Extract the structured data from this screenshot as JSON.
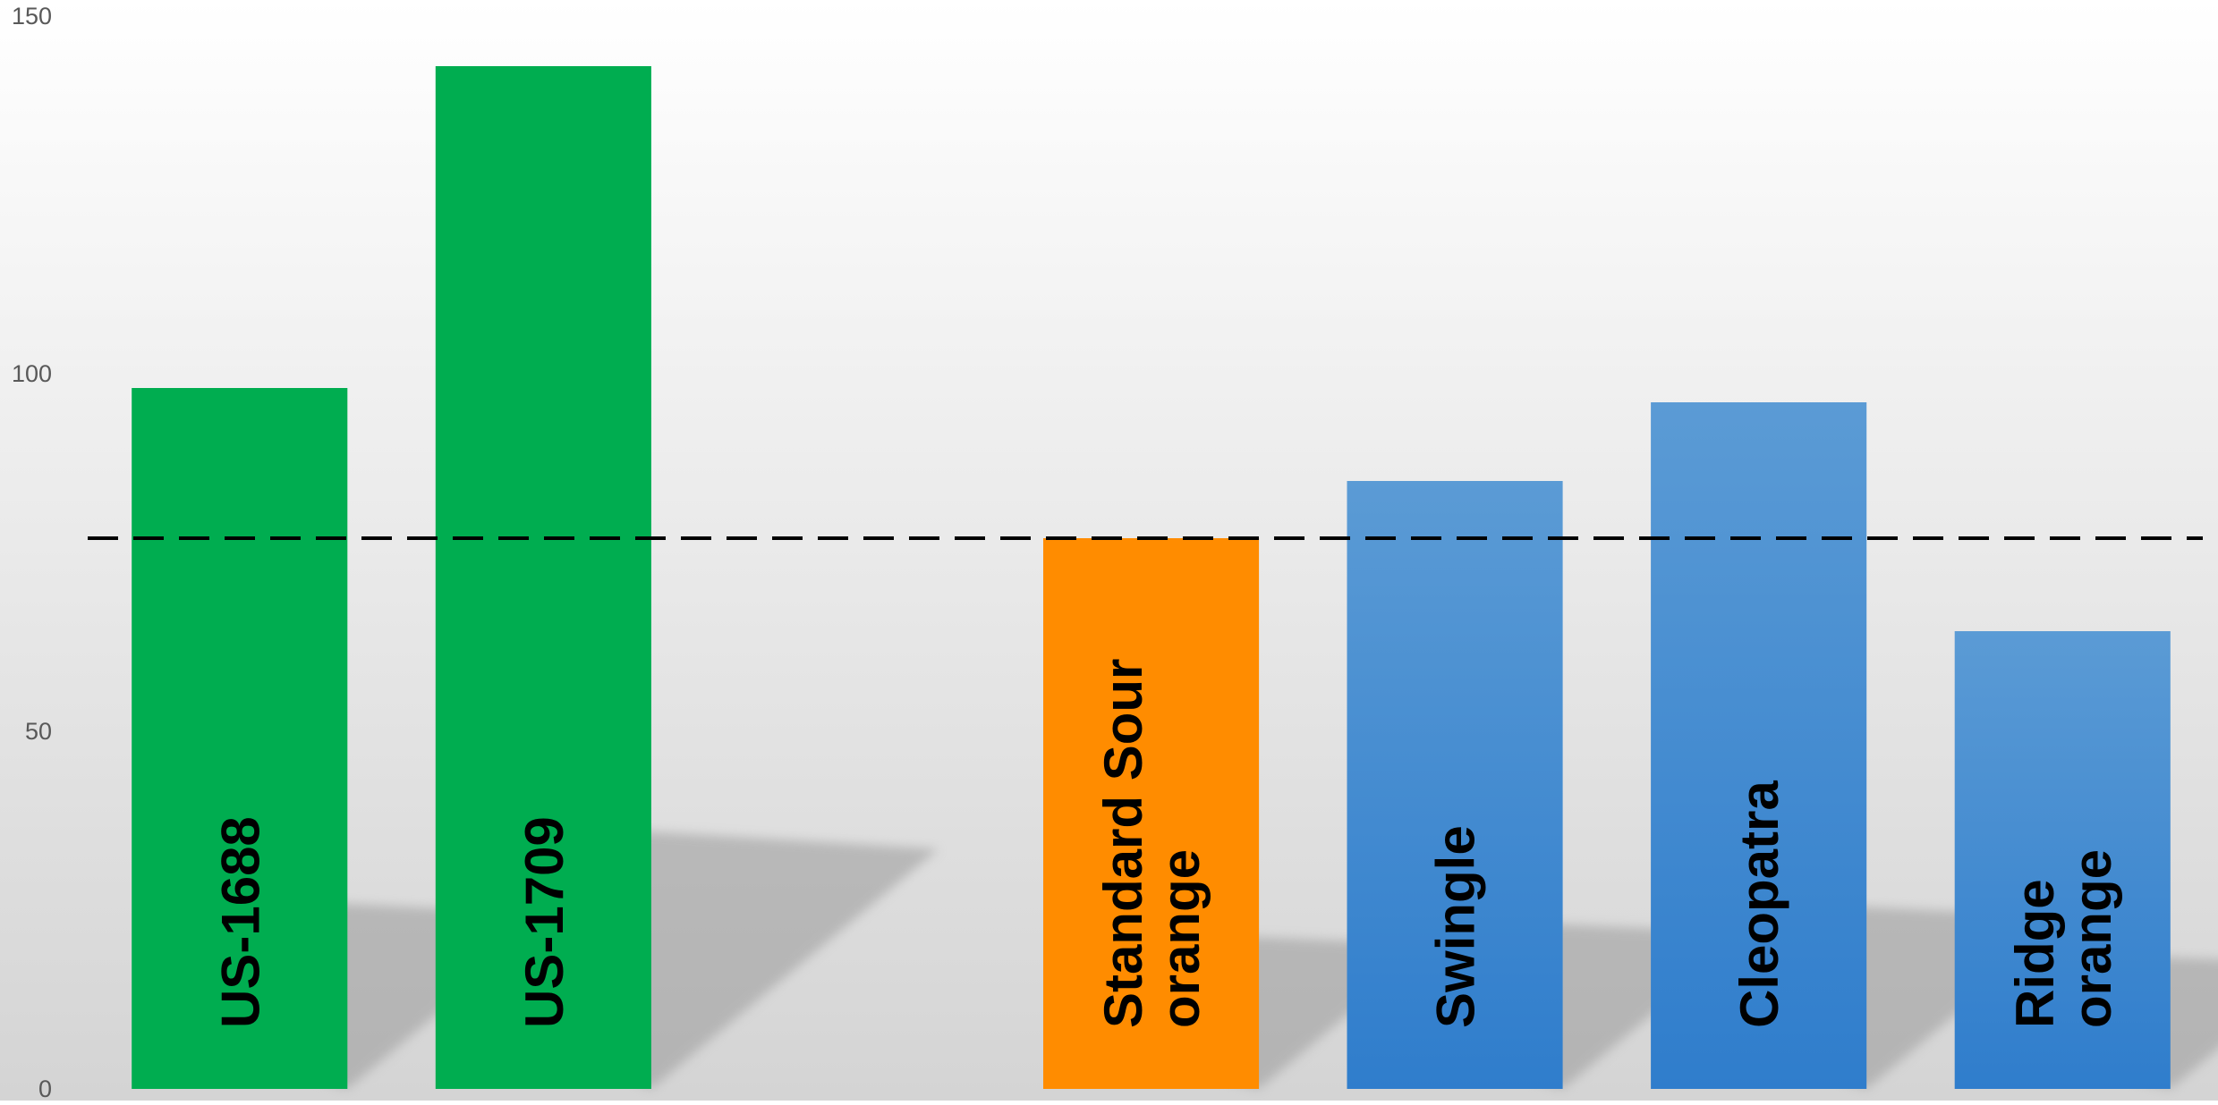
{
  "chart_data": {
    "type": "bar",
    "title": "",
    "xlabel": "",
    "ylabel": "",
    "ylim": [
      0,
      150
    ],
    "yticks": [
      "0",
      "50",
      "100",
      "150"
    ],
    "grid": false,
    "legend": "none",
    "categories": [
      [
        "US-1688"
      ],
      [
        "US-1709"
      ],
      [],
      [
        "Standard Sour",
        "orange"
      ],
      [
        "Swingle"
      ],
      [
        "Cleopatra"
      ],
      [
        "Ridge",
        "orange"
      ]
    ],
    "values": [
      98,
      143,
      null,
      77,
      85,
      96,
      64
    ],
    "bar_colors": [
      "#00ad50",
      "#00ad50",
      null,
      "#ff8c00",
      "#5b9bd5",
      "#5b9bd5",
      "#5b9bd5"
    ],
    "bar_colors_bottom": [
      "#00ad50",
      "#00ad50",
      null,
      "#ff8c00",
      "#2f7dcc",
      "#2f7dcc",
      "#2f7dcc"
    ],
    "reference_line": {
      "value": 77,
      "style": "dashed",
      "color": "#000000"
    },
    "background_gradient": [
      "#ffffff",
      "#d4d4d4"
    ]
  }
}
